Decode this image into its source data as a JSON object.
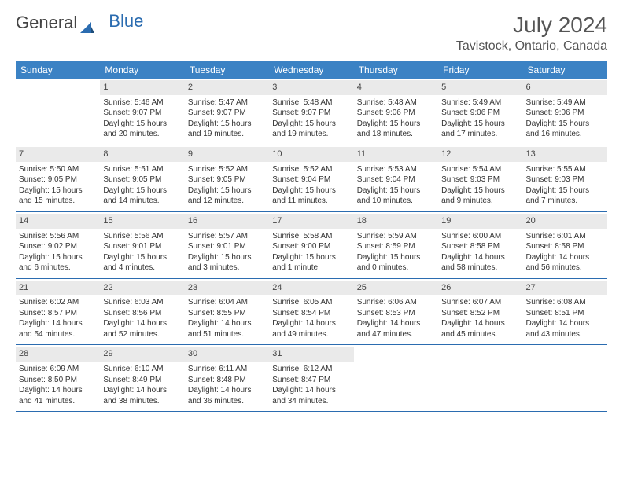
{
  "logo": {
    "part1": "General",
    "part2": "Blue"
  },
  "title": "July 2024",
  "location": "Tavistock, Ontario, Canada",
  "header_bg": "#3b82c4",
  "days_of_week": [
    "Sunday",
    "Monday",
    "Tuesday",
    "Wednesday",
    "Thursday",
    "Friday",
    "Saturday"
  ],
  "start_offset": 1,
  "days": [
    {
      "n": "1",
      "sr": "Sunrise: 5:46 AM",
      "ss": "Sunset: 9:07 PM",
      "d1": "Daylight: 15 hours",
      "d2": "and 20 minutes."
    },
    {
      "n": "2",
      "sr": "Sunrise: 5:47 AM",
      "ss": "Sunset: 9:07 PM",
      "d1": "Daylight: 15 hours",
      "d2": "and 19 minutes."
    },
    {
      "n": "3",
      "sr": "Sunrise: 5:48 AM",
      "ss": "Sunset: 9:07 PM",
      "d1": "Daylight: 15 hours",
      "d2": "and 19 minutes."
    },
    {
      "n": "4",
      "sr": "Sunrise: 5:48 AM",
      "ss": "Sunset: 9:06 PM",
      "d1": "Daylight: 15 hours",
      "d2": "and 18 minutes."
    },
    {
      "n": "5",
      "sr": "Sunrise: 5:49 AM",
      "ss": "Sunset: 9:06 PM",
      "d1": "Daylight: 15 hours",
      "d2": "and 17 minutes."
    },
    {
      "n": "6",
      "sr": "Sunrise: 5:49 AM",
      "ss": "Sunset: 9:06 PM",
      "d1": "Daylight: 15 hours",
      "d2": "and 16 minutes."
    },
    {
      "n": "7",
      "sr": "Sunrise: 5:50 AM",
      "ss": "Sunset: 9:05 PM",
      "d1": "Daylight: 15 hours",
      "d2": "and 15 minutes."
    },
    {
      "n": "8",
      "sr": "Sunrise: 5:51 AM",
      "ss": "Sunset: 9:05 PM",
      "d1": "Daylight: 15 hours",
      "d2": "and 14 minutes."
    },
    {
      "n": "9",
      "sr": "Sunrise: 5:52 AM",
      "ss": "Sunset: 9:05 PM",
      "d1": "Daylight: 15 hours",
      "d2": "and 12 minutes."
    },
    {
      "n": "10",
      "sr": "Sunrise: 5:52 AM",
      "ss": "Sunset: 9:04 PM",
      "d1": "Daylight: 15 hours",
      "d2": "and 11 minutes."
    },
    {
      "n": "11",
      "sr": "Sunrise: 5:53 AM",
      "ss": "Sunset: 9:04 PM",
      "d1": "Daylight: 15 hours",
      "d2": "and 10 minutes."
    },
    {
      "n": "12",
      "sr": "Sunrise: 5:54 AM",
      "ss": "Sunset: 9:03 PM",
      "d1": "Daylight: 15 hours",
      "d2": "and 9 minutes."
    },
    {
      "n": "13",
      "sr": "Sunrise: 5:55 AM",
      "ss": "Sunset: 9:03 PM",
      "d1": "Daylight: 15 hours",
      "d2": "and 7 minutes."
    },
    {
      "n": "14",
      "sr": "Sunrise: 5:56 AM",
      "ss": "Sunset: 9:02 PM",
      "d1": "Daylight: 15 hours",
      "d2": "and 6 minutes."
    },
    {
      "n": "15",
      "sr": "Sunrise: 5:56 AM",
      "ss": "Sunset: 9:01 PM",
      "d1": "Daylight: 15 hours",
      "d2": "and 4 minutes."
    },
    {
      "n": "16",
      "sr": "Sunrise: 5:57 AM",
      "ss": "Sunset: 9:01 PM",
      "d1": "Daylight: 15 hours",
      "d2": "and 3 minutes."
    },
    {
      "n": "17",
      "sr": "Sunrise: 5:58 AM",
      "ss": "Sunset: 9:00 PM",
      "d1": "Daylight: 15 hours",
      "d2": "and 1 minute."
    },
    {
      "n": "18",
      "sr": "Sunrise: 5:59 AM",
      "ss": "Sunset: 8:59 PM",
      "d1": "Daylight: 15 hours",
      "d2": "and 0 minutes."
    },
    {
      "n": "19",
      "sr": "Sunrise: 6:00 AM",
      "ss": "Sunset: 8:58 PM",
      "d1": "Daylight: 14 hours",
      "d2": "and 58 minutes."
    },
    {
      "n": "20",
      "sr": "Sunrise: 6:01 AM",
      "ss": "Sunset: 8:58 PM",
      "d1": "Daylight: 14 hours",
      "d2": "and 56 minutes."
    },
    {
      "n": "21",
      "sr": "Sunrise: 6:02 AM",
      "ss": "Sunset: 8:57 PM",
      "d1": "Daylight: 14 hours",
      "d2": "and 54 minutes."
    },
    {
      "n": "22",
      "sr": "Sunrise: 6:03 AM",
      "ss": "Sunset: 8:56 PM",
      "d1": "Daylight: 14 hours",
      "d2": "and 52 minutes."
    },
    {
      "n": "23",
      "sr": "Sunrise: 6:04 AM",
      "ss": "Sunset: 8:55 PM",
      "d1": "Daylight: 14 hours",
      "d2": "and 51 minutes."
    },
    {
      "n": "24",
      "sr": "Sunrise: 6:05 AM",
      "ss": "Sunset: 8:54 PM",
      "d1": "Daylight: 14 hours",
      "d2": "and 49 minutes."
    },
    {
      "n": "25",
      "sr": "Sunrise: 6:06 AM",
      "ss": "Sunset: 8:53 PM",
      "d1": "Daylight: 14 hours",
      "d2": "and 47 minutes."
    },
    {
      "n": "26",
      "sr": "Sunrise: 6:07 AM",
      "ss": "Sunset: 8:52 PM",
      "d1": "Daylight: 14 hours",
      "d2": "and 45 minutes."
    },
    {
      "n": "27",
      "sr": "Sunrise: 6:08 AM",
      "ss": "Sunset: 8:51 PM",
      "d1": "Daylight: 14 hours",
      "d2": "and 43 minutes."
    },
    {
      "n": "28",
      "sr": "Sunrise: 6:09 AM",
      "ss": "Sunset: 8:50 PM",
      "d1": "Daylight: 14 hours",
      "d2": "and 41 minutes."
    },
    {
      "n": "29",
      "sr": "Sunrise: 6:10 AM",
      "ss": "Sunset: 8:49 PM",
      "d1": "Daylight: 14 hours",
      "d2": "and 38 minutes."
    },
    {
      "n": "30",
      "sr": "Sunrise: 6:11 AM",
      "ss": "Sunset: 8:48 PM",
      "d1": "Daylight: 14 hours",
      "d2": "and 36 minutes."
    },
    {
      "n": "31",
      "sr": "Sunrise: 6:12 AM",
      "ss": "Sunset: 8:47 PM",
      "d1": "Daylight: 14 hours",
      "d2": "and 34 minutes."
    }
  ]
}
